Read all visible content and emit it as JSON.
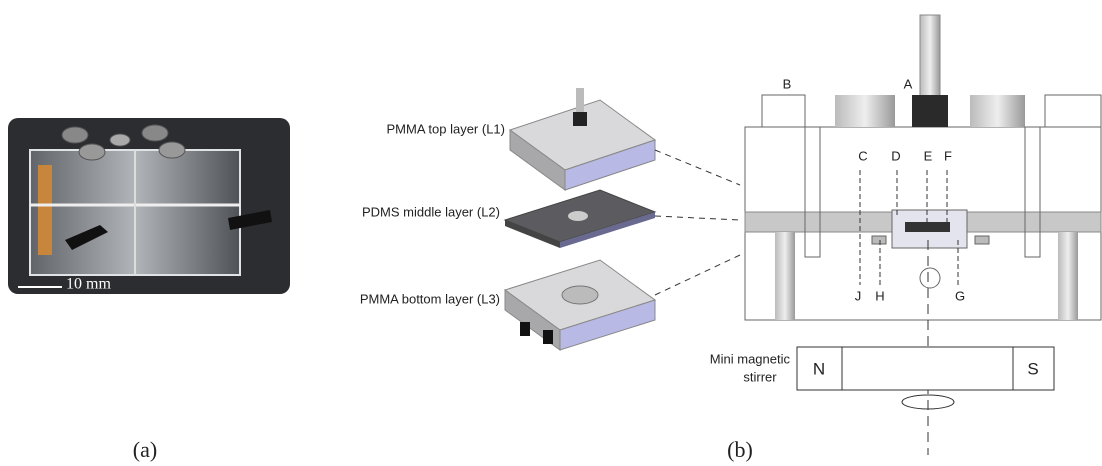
{
  "panel_a": {
    "scale_bar": "10 mm",
    "caption": "(a)"
  },
  "panel_b": {
    "caption": "(b)",
    "layers": [
      "PMMA top layer (L1)",
      "PDMS middle layer (L2)",
      "PMMA bottom layer (L3)"
    ],
    "part_labels": [
      "A",
      "B",
      "C",
      "D",
      "E",
      "F",
      "G",
      "H",
      "J"
    ],
    "stirrer": {
      "label": [
        "Mini magnetic",
        "stirrer"
      ],
      "poles": [
        "N",
        "S"
      ]
    }
  }
}
